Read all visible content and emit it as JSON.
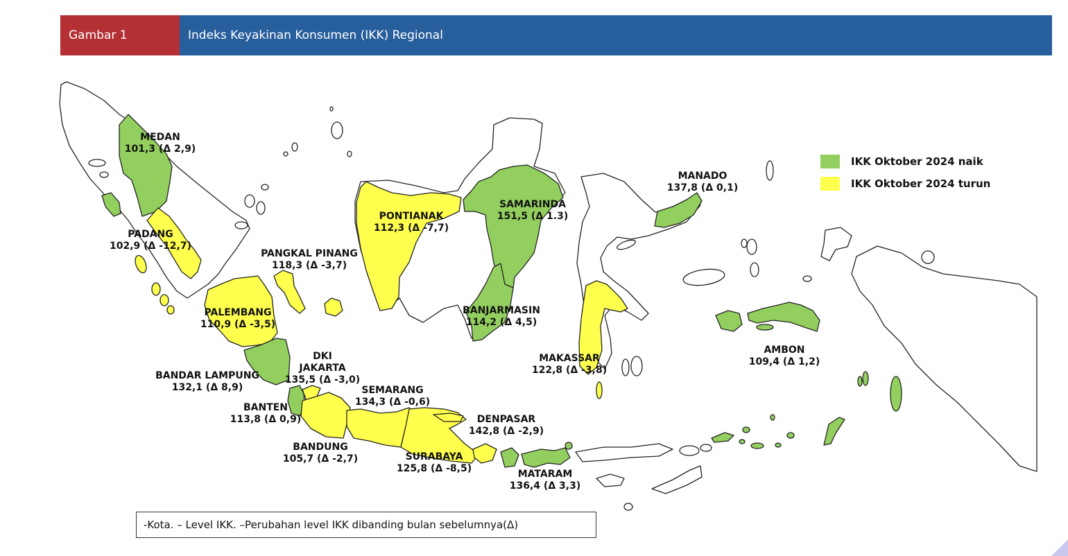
{
  "header": {
    "figure_number": "Gambar 1",
    "title": "Indeks Keyakinan Konsumen (IKK) Regional"
  },
  "colors": {
    "naik": "#93cf5f",
    "turun": "#ffff4d",
    "neutral": "#ffffff",
    "outline": "#222222",
    "header_red": "#b43035",
    "header_blue": "#275e9c"
  },
  "legend": {
    "naik_label": "IKK Oktober 2024 naik",
    "turun_label": "IKK Oktober 2024 turun"
  },
  "cities": [
    {
      "id": "medan",
      "name": "MEDAN",
      "value": "101,3 (Δ 2,9)",
      "status": "naik"
    },
    {
      "id": "padang",
      "name": "PADANG",
      "value": "102,9 (Δ -12,7)",
      "status": "turun"
    },
    {
      "id": "pangkal-pinang",
      "name": "PANGKAL PINANG",
      "value": "118,3 (Δ -3,7)",
      "status": "turun"
    },
    {
      "id": "palembang",
      "name": "PALEMBANG",
      "value": "110,9 (Δ -3,5)",
      "status": "turun"
    },
    {
      "id": "bandar-lampung",
      "name": "BANDAR LAMPUNG",
      "value": "132,1 (Δ 8,9)",
      "status": "naik"
    },
    {
      "id": "dki-jakarta",
      "name": "DKI\nJAKARTA",
      "value": "135,5 (Δ -3,0)",
      "status": "turun"
    },
    {
      "id": "banten",
      "name": "BANTEN",
      "value": "113,8 (Δ 0,9)",
      "status": "naik"
    },
    {
      "id": "bandung",
      "name": "BANDUNG",
      "value": "105,7 (Δ -2,7)",
      "status": "turun"
    },
    {
      "id": "semarang",
      "name": "SEMARANG",
      "value": "134,3 (Δ -0,6)",
      "status": "turun"
    },
    {
      "id": "surabaya",
      "name": "SURABAYA",
      "value": "125,8 (Δ -8,5)",
      "status": "turun"
    },
    {
      "id": "denpasar",
      "name": "DENPASAR",
      "value": "142,8 (Δ -2,9)",
      "status": "turun"
    },
    {
      "id": "mataram",
      "name": "MATARAM",
      "value": "136,4 (Δ 3,3)",
      "status": "naik"
    },
    {
      "id": "pontianak",
      "name": "PONTIANAK",
      "value": "112,3 (Δ -7,7)",
      "status": "turun"
    },
    {
      "id": "samarinda",
      "name": "SAMARINDA",
      "value": "151,5 (Δ 1.3)",
      "status": "naik"
    },
    {
      "id": "banjarmasin",
      "name": "BANJARMASIN",
      "value": "114,2 (Δ 4,5)",
      "status": "naik"
    },
    {
      "id": "makassar",
      "name": "MAKASSAR",
      "value": "122,8 (Δ -3,8)",
      "status": "turun"
    },
    {
      "id": "manado",
      "name": "MANADO",
      "value": "137,8 (Δ 0,1)",
      "status": "naik"
    },
    {
      "id": "ambon",
      "name": "AMBON",
      "value": "109,4 (Δ 1,2)",
      "status": "naik"
    }
  ],
  "note": "-Kota. – Level IKK.  –Perubahan level IKK dibanding bulan sebelumnya(Δ)"
}
